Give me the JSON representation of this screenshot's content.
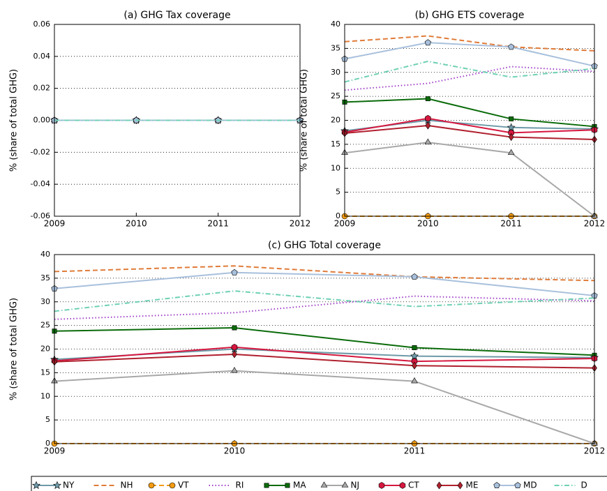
{
  "legend": {
    "items": [
      {
        "name": "NY",
        "color": "#6e9aa8",
        "dash": "solid",
        "marker": "star"
      },
      {
        "name": "NH",
        "color": "#e07b39",
        "dash": "dashed",
        "marker": "none"
      },
      {
        "name": "VT",
        "color": "#f39c12",
        "dash": "dashed",
        "marker": "circle"
      },
      {
        "name": "RI",
        "color": "#a040c8",
        "dash": "dotted",
        "marker": "none"
      },
      {
        "name": "MA",
        "color": "#0a6b0a",
        "dash": "solid",
        "marker": "square"
      },
      {
        "name": "NJ",
        "color": "#a8a8a8",
        "dash": "solid",
        "marker": "triangle"
      },
      {
        "name": "CT",
        "color": "#d6173f",
        "dash": "solid",
        "marker": "hexagon"
      },
      {
        "name": "ME",
        "color": "#b0202e",
        "dash": "solid",
        "marker": "diamond"
      },
      {
        "name": "MD",
        "color": "#a8c0dc",
        "dash": "solid",
        "marker": "pentagon"
      },
      {
        "name": "D",
        "color": "#6fd0b4",
        "dash": "dashdot",
        "marker": "none"
      }
    ]
  },
  "chart_data": [
    {
      "type": "line",
      "title": "(a) GHG Tax coverage",
      "y_label": "% (share of total GHG)",
      "x": [
        2009,
        2010,
        2011,
        2012
      ],
      "xlim": [
        2009,
        2012
      ],
      "xticks": [
        2009,
        2010,
        2011,
        2012
      ],
      "ylim": [
        -0.06,
        0.06
      ],
      "yticks": [
        {
          "value": -0.06,
          "label": "-0.06"
        },
        {
          "value": -0.04,
          "label": "-0.04"
        },
        {
          "value": -0.02,
          "label": "-0.02"
        },
        {
          "value": 0,
          "label": "0.00"
        },
        {
          "value": 0.02,
          "label": "0.02"
        },
        {
          "value": 0.04,
          "label": "0.04"
        },
        {
          "value": 0.06,
          "label": "0.06"
        }
      ],
      "grid": true,
      "series": [
        {
          "values": [
            0,
            0,
            0,
            0
          ]
        },
        {
          "values": [
            0,
            0,
            0,
            0
          ]
        },
        {
          "values": [
            0,
            0,
            0,
            0
          ]
        },
        {
          "values": [
            0,
            0,
            0,
            0
          ]
        },
        {
          "values": [
            0,
            0,
            0,
            0
          ]
        },
        {
          "values": [
            0,
            0,
            0,
            0
          ]
        },
        {
          "values": [
            0,
            0,
            0,
            0
          ]
        },
        {
          "values": [
            0,
            0,
            0,
            0
          ]
        },
        {
          "values": [
            0,
            0,
            0,
            0
          ]
        },
        {
          "values": [
            0,
            0,
            0,
            0
          ]
        }
      ]
    },
    {
      "type": "line",
      "title": "(b) GHG ETS coverage",
      "y_label": "% (share of total GHG)",
      "x": [
        2009,
        2010,
        2011,
        2012
      ],
      "xlim": [
        2009,
        2012
      ],
      "xticks": [
        2009,
        2010,
        2011,
        2012
      ],
      "ylim": [
        0,
        40
      ],
      "yticks": [
        0,
        5,
        10,
        15,
        20,
        25,
        30,
        35,
        40
      ],
      "grid": true,
      "series": [
        {
          "values": [
            17.8,
            20.0,
            18.5,
            18.2
          ]
        },
        {
          "values": [
            36.4,
            37.6,
            35.3,
            34.5
          ]
        },
        {
          "values": [
            0,
            0,
            0,
            0
          ]
        },
        {
          "values": [
            26.3,
            27.7,
            31.2,
            30.2
          ]
        },
        {
          "values": [
            23.8,
            24.5,
            20.3,
            18.7
          ]
        },
        {
          "values": [
            13.2,
            15.4,
            13.2,
            0
          ]
        },
        {
          "values": [
            17.5,
            20.4,
            17.4,
            18.0
          ]
        },
        {
          "values": [
            17.3,
            18.9,
            16.5,
            16.0
          ]
        },
        {
          "values": [
            32.8,
            36.2,
            35.3,
            31.3
          ]
        },
        {
          "values": [
            28.0,
            32.3,
            29.0,
            30.8
          ]
        }
      ]
    },
    {
      "type": "line",
      "title": "(c) GHG Total coverage",
      "y_label": "% (share of total GHG)",
      "x": [
        2009,
        2010,
        2011,
        2012
      ],
      "xlim": [
        2009,
        2012
      ],
      "xticks": [
        2009,
        2010,
        2011,
        2012
      ],
      "ylim": [
        0,
        40
      ],
      "yticks": [
        0,
        5,
        10,
        15,
        20,
        25,
        30,
        35,
        40
      ],
      "grid": true,
      "series": [
        {
          "values": [
            17.8,
            20.0,
            18.5,
            18.2
          ]
        },
        {
          "values": [
            36.4,
            37.6,
            35.3,
            34.5
          ]
        },
        {
          "values": [
            0,
            0,
            0,
            0
          ]
        },
        {
          "values": [
            26.3,
            27.7,
            31.2,
            30.2
          ]
        },
        {
          "values": [
            23.8,
            24.5,
            20.3,
            18.7
          ]
        },
        {
          "values": [
            13.2,
            15.4,
            13.2,
            0
          ]
        },
        {
          "values": [
            17.5,
            20.4,
            17.4,
            18.0
          ]
        },
        {
          "values": [
            17.3,
            18.9,
            16.5,
            16.0
          ]
        },
        {
          "values": [
            32.8,
            36.2,
            35.3,
            31.3
          ]
        },
        {
          "values": [
            28.0,
            32.3,
            29.0,
            30.8
          ]
        }
      ]
    }
  ]
}
